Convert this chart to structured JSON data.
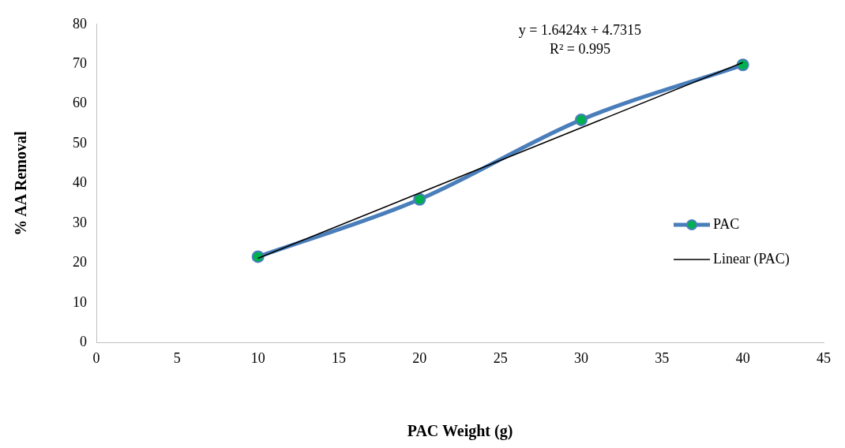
{
  "chart_data": {
    "type": "line",
    "xlabel": "PAC Weight (g)",
    "ylabel": "% AA Removal",
    "x": [
      10,
      20,
      30,
      40
    ],
    "series": [
      {
        "name": "PAC",
        "color": "#4a7ebb",
        "colors": [
          "#00b050",
          "#00b050",
          "#00b050",
          "#00b050"
        ],
        "marker": "circle",
        "values": [
          21.6,
          36,
          56,
          69.8
        ]
      },
      {
        "name": "Linear (PAC)",
        "type": "line",
        "color": "#000000",
        "marker": "none",
        "x": [
          10,
          40
        ],
        "values": [
          21.2,
          70.4
        ]
      }
    ],
    "xlim": [
      0,
      45
    ],
    "xticks": [
      0,
      5,
      10,
      15,
      20,
      25,
      30,
      35,
      40,
      45
    ],
    "ylim": [
      0,
      80
    ],
    "yticks": [
      0,
      10,
      20,
      30,
      40,
      50,
      60,
      70,
      80
    ],
    "grid": false,
    "legend": "right",
    "annotations": [
      "y = 1.6424x + 4.7315",
      "R² = 0.995"
    ]
  }
}
